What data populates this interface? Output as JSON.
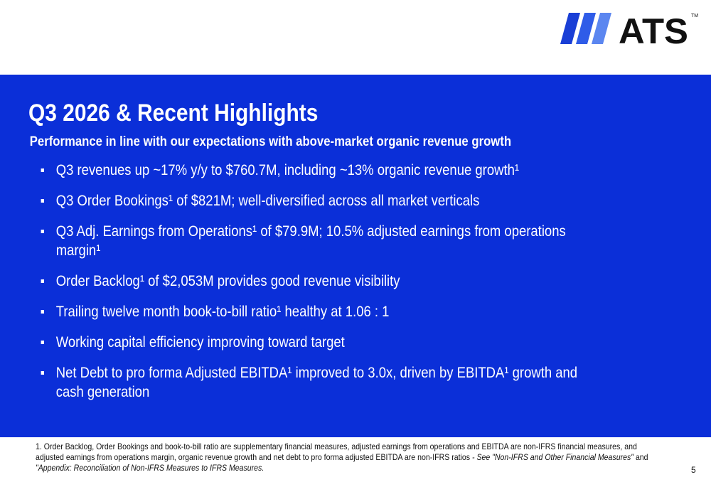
{
  "logo": {
    "text": "ATS",
    "trademark": "TM"
  },
  "title": "Q3 2026 & Recent Highlights",
  "subtitle": "Performance in line with our expectations with above-market organic revenue growth",
  "bullets": [
    "Q3 revenues up ~17% y/y to $760.7M, including ~13% organic revenue growth¹",
    "Q3 Order Bookings¹ of $821M; well-diversified across all market verticals",
    "Q3 Adj. Earnings from Operations¹ of $79.9M; 10.5% adjusted earnings from operations margin¹",
    "Order Backlog¹ of $2,053M provides good revenue visibility",
    "Trailing twelve month book-to-bill ratio¹ healthy at 1.06 : 1",
    "Working capital efficiency improving toward target",
    "Net Debt to pro forma Adjusted EBITDA¹ improved to 3.0x, driven by EBITDA¹ growth and cash generation"
  ],
  "footnote": [
    "1. Order Backlog, Order Bookings and book-to-bill ratio are supplementary financial measures, adjusted earnings from operations and EBITDA are non-IFRS financial measures, and adjusted earnings from operations margin, organic revenue growth and net debt to pro forma adjusted EBITDA are non-IFRS ratios ",
    " - See \"Non-IFRS and Other Financial Measures\"",
    " and ",
    "\"Appendix: Reconciliation of Non-IFRS Measures to IFRS Measures."
  ],
  "page_number": "5"
}
